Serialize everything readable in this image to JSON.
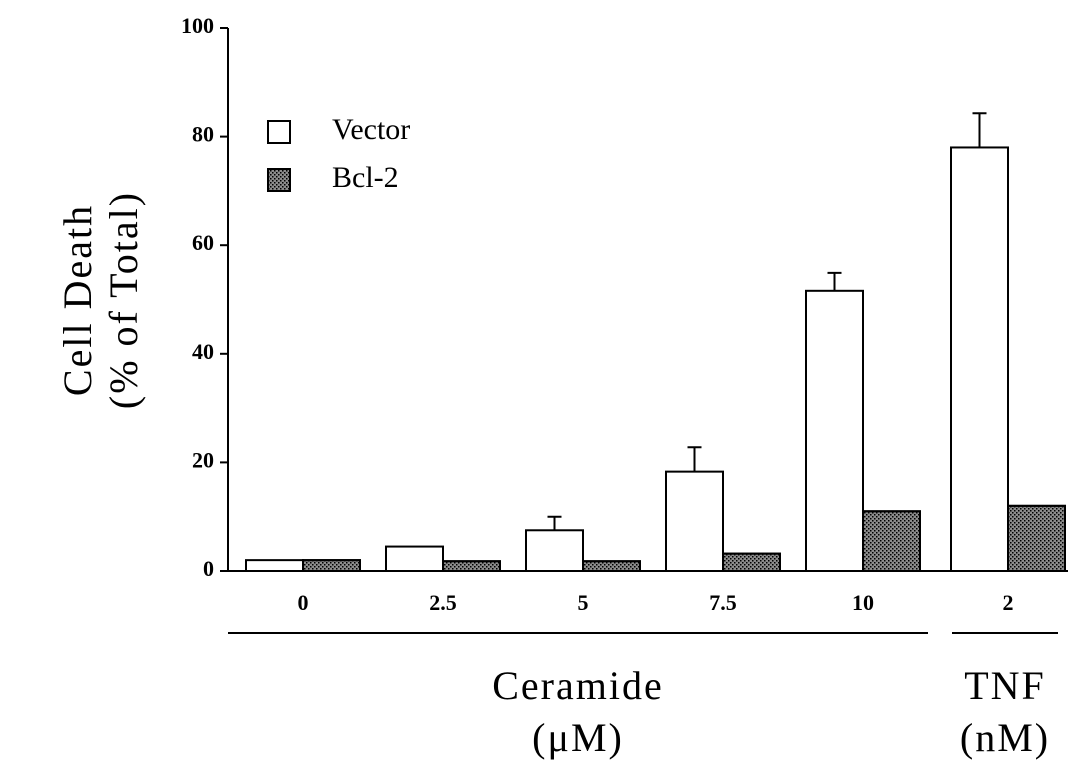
{
  "chart_data": {
    "type": "bar",
    "ylabel": [
      "Cell Death",
      "(% of Total)"
    ],
    "categories": [
      "0",
      "2.5",
      "5",
      "7.5",
      "10",
      "2"
    ],
    "groups": [
      {
        "name": "Ceramide",
        "unit": "(μM)"
      },
      {
        "name": "TNF",
        "unit": "(nM)"
      }
    ],
    "series": [
      {
        "name": "Vector",
        "color": "#ffffff",
        "values": [
          2,
          4.5,
          7.5,
          18.3,
          51.6,
          78
        ],
        "errors": [
          null,
          null,
          2.5,
          4.5,
          3.3,
          6.3
        ]
      },
      {
        "name": "Bcl-2",
        "color": "#8c8c8c",
        "values": [
          2,
          1.8,
          1.8,
          3.2,
          11,
          12
        ],
        "errors": [
          null,
          null,
          null,
          null,
          null,
          null
        ]
      }
    ],
    "ylim": [
      0,
      100
    ],
    "yticks": [
      0,
      20,
      40,
      60,
      80,
      100
    ],
    "legend": "upper-left"
  }
}
